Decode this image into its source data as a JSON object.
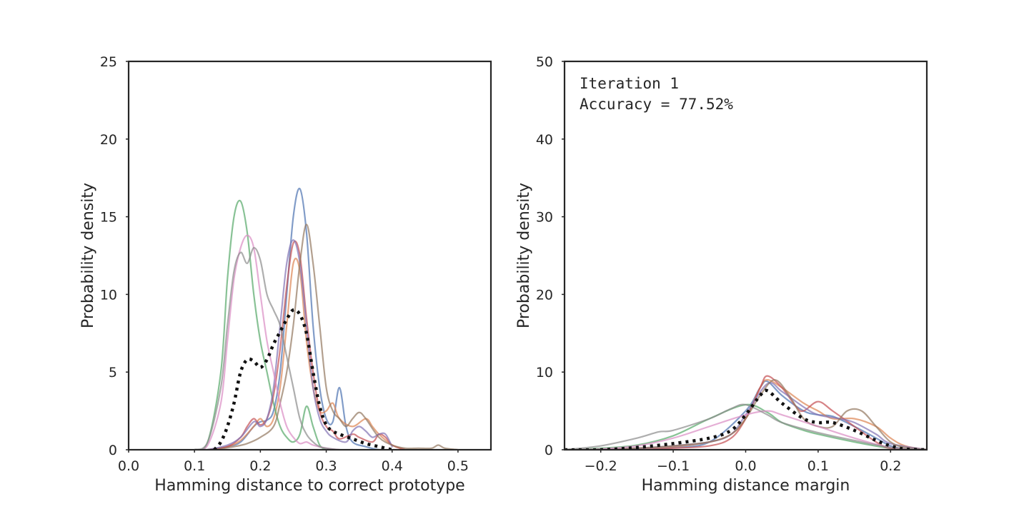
{
  "chart_data": [
    {
      "type": "line",
      "title": "",
      "xlabel": "Hamming distance to correct prototype",
      "ylabel": "Probability density",
      "xlim": [
        0.0,
        0.55
      ],
      "ylim": [
        0,
        25
      ],
      "xticks": [
        0.0,
        0.1,
        0.2,
        0.3,
        0.4,
        0.5
      ],
      "xtick_labels": [
        "0.0",
        "0.1",
        "0.2",
        "0.3",
        "0.4",
        "0.5"
      ],
      "yticks": [
        0,
        5,
        10,
        15,
        20,
        25
      ],
      "ytick_labels": [
        "0",
        "5",
        "10",
        "15",
        "20",
        "25"
      ],
      "grid": false,
      "annotation_lines": [],
      "series": [
        {
          "color": "#4c72b0",
          "x": [
            0.12,
            0.15,
            0.17,
            0.19,
            0.2,
            0.21,
            0.22,
            0.23,
            0.24,
            0.25,
            0.26,
            0.27,
            0.28,
            0.29,
            0.3,
            0.31,
            0.32,
            0.33,
            0.34,
            0.36,
            0.38,
            0.4
          ],
          "y": [
            0,
            0.2,
            0.5,
            1.5,
            1.8,
            1.9,
            2.5,
            5,
            10,
            15,
            16.8,
            14,
            8,
            4,
            2,
            1.8,
            4,
            1.5,
            0.5,
            0.2,
            0,
            0
          ]
        },
        {
          "color": "#dd8452",
          "x": [
            0.12,
            0.15,
            0.17,
            0.19,
            0.2,
            0.21,
            0.22,
            0.23,
            0.24,
            0.25,
            0.26,
            0.27,
            0.28,
            0.29,
            0.3,
            0.31,
            0.32,
            0.34,
            0.36,
            0.37,
            0.38,
            0.4,
            0.42
          ],
          "y": [
            0,
            0.2,
            0.6,
            1.5,
            2,
            1.5,
            2,
            4,
            8,
            12,
            11.5,
            7,
            4,
            2.5,
            2.5,
            3,
            2,
            1.5,
            2,
            1.5,
            1,
            0.3,
            0
          ]
        },
        {
          "color": "#55a868",
          "x": [
            0.1,
            0.12,
            0.14,
            0.15,
            0.16,
            0.17,
            0.18,
            0.19,
            0.2,
            0.21,
            0.22,
            0.23,
            0.24,
            0.25,
            0.26,
            0.27,
            0.28,
            0.29,
            0.3
          ],
          "y": [
            0,
            0.5,
            5,
            11,
            15,
            16,
            14,
            10,
            7,
            5,
            3,
            1.5,
            0.8,
            0.5,
            1,
            2.8,
            1.5,
            0.3,
            0
          ]
        },
        {
          "color": "#c44e52",
          "x": [
            0.12,
            0.15,
            0.17,
            0.18,
            0.19,
            0.2,
            0.21,
            0.22,
            0.23,
            0.24,
            0.25,
            0.26,
            0.27,
            0.28,
            0.29,
            0.3,
            0.31,
            0.32,
            0.34,
            0.35,
            0.37,
            0.38,
            0.39,
            0.4,
            0.42
          ],
          "y": [
            0,
            0.2,
            0.8,
            1.5,
            2,
            1.6,
            2,
            3.5,
            6.5,
            10.5,
            13.3,
            12.5,
            8.5,
            5,
            2.5,
            1.5,
            1.2,
            0.7,
            1,
            0.8,
            0.5,
            1,
            0.8,
            0.3,
            0
          ]
        },
        {
          "color": "#8172b3",
          "x": [
            0.12,
            0.15,
            0.17,
            0.19,
            0.2,
            0.21,
            0.22,
            0.23,
            0.24,
            0.25,
            0.26,
            0.27,
            0.28,
            0.29,
            0.3,
            0.31,
            0.33,
            0.34,
            0.35,
            0.36,
            0.37,
            0.38,
            0.39,
            0.4
          ],
          "y": [
            0,
            0.3,
            0.8,
            1.8,
            1.5,
            2,
            4,
            8,
            12,
            13.5,
            12,
            8,
            4,
            2,
            1.2,
            0.8,
            0.5,
            1.2,
            1.5,
            1.2,
            0.8,
            1,
            1,
            0.2
          ]
        },
        {
          "color": "#937860",
          "x": [
            0.13,
            0.16,
            0.18,
            0.2,
            0.22,
            0.23,
            0.24,
            0.25,
            0.26,
            0.27,
            0.28,
            0.29,
            0.3,
            0.31,
            0.32,
            0.33,
            0.34,
            0.35,
            0.36,
            0.38,
            0.4,
            0.42,
            0.44,
            0.46,
            0.47,
            0.48,
            0.5
          ],
          "y": [
            0,
            0.2,
            0.4,
            0.8,
            1.5,
            3,
            5,
            8,
            12,
            14.5,
            12,
            8,
            4,
            2.5,
            2,
            1.5,
            2,
            2.4,
            2,
            0.8,
            0.3,
            0.1,
            0.1,
            0.1,
            0.3,
            0.1,
            0
          ]
        },
        {
          "color": "#da8bc3",
          "x": [
            0.1,
            0.12,
            0.14,
            0.15,
            0.16,
            0.17,
            0.18,
            0.19,
            0.2,
            0.21,
            0.22,
            0.23,
            0.24,
            0.25,
            0.26,
            0.27,
            0.28,
            0.3,
            0.32,
            0.34
          ],
          "y": [
            0,
            0.3,
            3,
            7,
            11,
            13,
            13.8,
            13,
            10,
            7,
            5,
            3,
            1.5,
            0.8,
            0.4,
            0.5,
            0.3,
            0.1,
            0,
            0
          ]
        },
        {
          "color": "#8c8c8c",
          "x": [
            0.1,
            0.12,
            0.14,
            0.15,
            0.16,
            0.17,
            0.18,
            0.19,
            0.2,
            0.21,
            0.22,
            0.23,
            0.24,
            0.25,
            0.26,
            0.27,
            0.28,
            0.29,
            0.3,
            0.32,
            0.34
          ],
          "y": [
            0,
            0.5,
            4,
            8,
            11.5,
            12.7,
            12,
            13,
            12.2,
            10,
            9,
            8,
            6,
            4,
            2,
            1,
            0.5,
            0.2,
            0.1,
            0,
            0
          ]
        }
      ],
      "mean_series": {
        "color": "#111111",
        "style": "dotted",
        "x": [
          0.13,
          0.14,
          0.15,
          0.16,
          0.17,
          0.18,
          0.19,
          0.2,
          0.21,
          0.22,
          0.23,
          0.24,
          0.25,
          0.26,
          0.27,
          0.28,
          0.29,
          0.3,
          0.31,
          0.32,
          0.34,
          0.36,
          0.38,
          0.4
        ],
        "y": [
          0,
          0.5,
          1.5,
          3,
          5,
          5.8,
          5.7,
          5.3,
          5.8,
          6.8,
          7.6,
          8.4,
          9,
          8.7,
          7.5,
          5,
          2.8,
          1.6,
          1.2,
          1,
          0.7,
          0.4,
          0.2,
          0
        ]
      }
    },
    {
      "type": "line",
      "title": "",
      "xlabel": "Hamming distance margin",
      "ylabel": "Probability density",
      "xlim": [
        -0.25,
        0.25
      ],
      "ylim": [
        0,
        50
      ],
      "xticks": [
        -0.2,
        -0.1,
        0.0,
        0.1,
        0.2
      ],
      "xtick_labels": [
        "−0.2",
        "−0.1",
        "0.0",
        "0.1",
        "0.2"
      ],
      "yticks": [
        0,
        10,
        20,
        30,
        40,
        50
      ],
      "ytick_labels": [
        "0",
        "10",
        "20",
        "30",
        "40",
        "50"
      ],
      "grid": false,
      "annotation_lines": [
        "Iteration 1",
        "Accuracy = 77.52%"
      ],
      "series": [
        {
          "color": "#4c72b0",
          "x": [
            -0.25,
            -0.2,
            -0.15,
            -0.1,
            -0.05,
            0.0,
            0.02,
            0.03,
            0.05,
            0.08,
            0.1,
            0.12,
            0.15,
            0.18,
            0.2,
            0.22,
            0.25
          ],
          "y": [
            0,
            0,
            0.1,
            0.3,
            1,
            5,
            8,
            8.8,
            7,
            5,
            4.5,
            4.3,
            3,
            1.5,
            0.5,
            0.1,
            0
          ]
        },
        {
          "color": "#dd8452",
          "x": [
            -0.25,
            -0.2,
            -0.15,
            -0.1,
            -0.05,
            -0.02,
            0.0,
            0.02,
            0.03,
            0.05,
            0.08,
            0.1,
            0.12,
            0.15,
            0.18,
            0.2,
            0.22,
            0.25
          ],
          "y": [
            0,
            0,
            0.2,
            0.4,
            1,
            2,
            4,
            8,
            9,
            8,
            6,
            5,
            4,
            4,
            3,
            1.5,
            0.5,
            0
          ]
        },
        {
          "color": "#55a868",
          "x": [
            -0.25,
            -0.2,
            -0.15,
            -0.1,
            -0.05,
            0.0,
            0.03,
            0.05,
            0.08,
            0.1,
            0.15,
            0.2,
            0.25
          ],
          "y": [
            0,
            0.2,
            0.6,
            1.8,
            4,
            5.8,
            4.8,
            3.5,
            2.5,
            2,
            1,
            0.2,
            0
          ]
        },
        {
          "color": "#c44e52",
          "x": [
            -0.25,
            -0.2,
            -0.15,
            -0.1,
            -0.05,
            -0.02,
            0.0,
            0.02,
            0.03,
            0.05,
            0.07,
            0.08,
            0.1,
            0.12,
            0.15,
            0.18,
            0.2,
            0.25
          ],
          "y": [
            0,
            0,
            0,
            0.2,
            0.5,
            1.5,
            4,
            8,
            9.5,
            8,
            5.5,
            5,
            6.2,
            5,
            3,
            1,
            0.2,
            0
          ]
        },
        {
          "color": "#8172b3",
          "x": [
            -0.25,
            -0.2,
            -0.15,
            -0.1,
            -0.05,
            -0.02,
            0.0,
            0.03,
            0.05,
            0.08,
            0.1,
            0.13,
            0.15,
            0.18,
            0.2,
            0.25
          ],
          "y": [
            0,
            0,
            0.2,
            0.5,
            1,
            2,
            4.5,
            8.5,
            7.5,
            5.5,
            4.5,
            4,
            3.5,
            2,
            0.8,
            0
          ]
        },
        {
          "color": "#937860",
          "x": [
            -0.25,
            -0.2,
            -0.15,
            -0.1,
            -0.05,
            -0.02,
            0.0,
            0.02,
            0.04,
            0.06,
            0.08,
            0.1,
            0.12,
            0.14,
            0.16,
            0.18,
            0.2,
            0.22,
            0.25
          ],
          "y": [
            0,
            0,
            0.2,
            0.5,
            1,
            2,
            4,
            7,
            9,
            7,
            4,
            3,
            3,
            5,
            5,
            3,
            1,
            0.3,
            0
          ]
        },
        {
          "color": "#da8bc3",
          "x": [
            -0.25,
            -0.2,
            -0.15,
            -0.1,
            -0.05,
            0.0,
            0.03,
            0.05,
            0.1,
            0.15,
            0.2,
            0.25
          ],
          "y": [
            0,
            0.1,
            0.5,
            1.5,
            3,
            4.5,
            5,
            4.5,
            3,
            1.5,
            0.3,
            0
          ]
        },
        {
          "color": "#8c8c8c",
          "x": [
            -0.25,
            -0.2,
            -0.15,
            -0.12,
            -0.1,
            -0.05,
            -0.02,
            0.0,
            0.03,
            0.05,
            0.1,
            0.15,
            0.2,
            0.25
          ],
          "y": [
            0,
            0.5,
            1.5,
            2.3,
            2.5,
            4,
            5.3,
            5.8,
            4.5,
            3.5,
            2.2,
            1.2,
            0.3,
            0
          ]
        }
      ],
      "mean_series": {
        "color": "#111111",
        "style": "dotted",
        "x": [
          -0.25,
          -0.2,
          -0.15,
          -0.1,
          -0.05,
          -0.02,
          0.0,
          0.02,
          0.03,
          0.05,
          0.08,
          0.1,
          0.12,
          0.15,
          0.18,
          0.2,
          0.22,
          0.25
        ],
        "y": [
          0,
          0,
          0.3,
          0.8,
          1.5,
          2.5,
          4.5,
          7,
          7.6,
          6,
          4,
          3.5,
          3.5,
          2.5,
          1.2,
          0.5,
          0.1,
          0
        ]
      }
    }
  ]
}
